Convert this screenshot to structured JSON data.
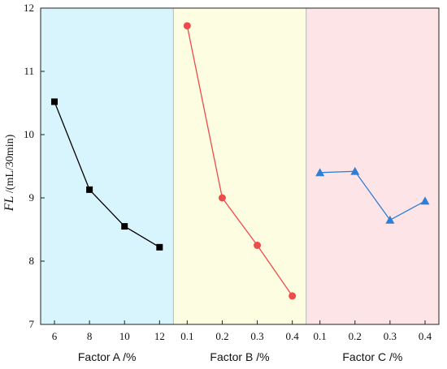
{
  "chart_data": {
    "type": "line",
    "ylabel": {
      "italic": "FL",
      "rest": " /(mL/30min)"
    },
    "ylim": [
      7,
      12
    ],
    "yticks": [
      "7",
      "8",
      "9",
      "10",
      "11",
      "12"
    ],
    "panels": [
      {
        "xlabel": "Factor A /%",
        "background": "#d8f4fc",
        "color": "#000000",
        "marker": "square",
        "x": [
          "6",
          "8",
          "10",
          "12"
        ],
        "values": [
          10.52,
          9.13,
          8.55,
          8.22
        ]
      },
      {
        "xlabel": "Factor B /%",
        "background": "#fdfde2",
        "color": "#ee4b4b",
        "marker": "circle",
        "x": [
          "0.1",
          "0.2",
          "0.3",
          "0.4"
        ],
        "values": [
          11.72,
          9.0,
          8.25,
          7.45
        ]
      },
      {
        "xlabel": "Factor C /%",
        "background": "#fde4e6",
        "color": "#2f7fd6",
        "marker": "triangle",
        "x": [
          "0.1",
          "0.2",
          "0.3",
          "0.4"
        ],
        "values": [
          9.4,
          9.42,
          8.65,
          8.95
        ]
      }
    ]
  }
}
